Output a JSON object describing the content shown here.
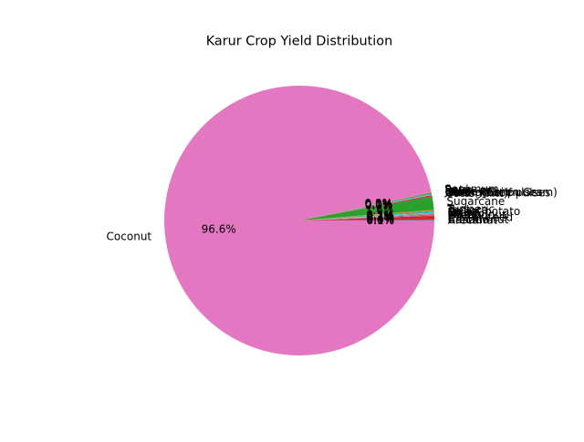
{
  "chart_data": {
    "type": "pie",
    "title": "Karur Crop Yield Distribution",
    "start_angle_deg": 0,
    "direction": "counterclockwise",
    "slices": [
      {
        "label": "Arecanut",
        "value": 0.08,
        "pct_text": "0.1%",
        "color": "#1f77b4"
      },
      {
        "label": "Banana",
        "value": 0.02,
        "pct_text": "0.0%",
        "color": "#ff7f0e"
      },
      {
        "label": "Cashewnut",
        "value": 0.02,
        "pct_text": "0.0%",
        "color": "#2ca02c"
      },
      {
        "label": "Castor seed",
        "value": 0.45,
        "pct_text": "0.4%",
        "color": "#d62728"
      },
      {
        "label": "Groundnut",
        "value": 0.08,
        "pct_text": "0.1%",
        "color": "#9467bd"
      },
      {
        "label": "Maize",
        "value": 0.06,
        "pct_text": "0.1%",
        "color": "#8c564b"
      },
      {
        "label": "Mango",
        "value": 0.07,
        "pct_text": "0.1%",
        "color": "#e377c2"
      },
      {
        "label": "Rice",
        "value": 0.08,
        "pct_text": "0.1%",
        "color": "#7f7f7f"
      },
      {
        "label": "Onion",
        "value": 0.06,
        "pct_text": "0.1%",
        "color": "#bcbd22"
      },
      {
        "label": "Sweet potato",
        "value": 0.16,
        "pct_text": "0.2%",
        "color": "#17becf"
      },
      {
        "label": "Tapioca",
        "value": 0.07,
        "pct_text": "0.1%",
        "color": "#1f77b4"
      },
      {
        "label": "Turmeric",
        "value": 0.11,
        "pct_text": "0.1%",
        "color": "#ff7f0e"
      },
      {
        "label": "Sugarcane",
        "value": 1.63,
        "pct_text": "1.6%",
        "color": "#2ca02c"
      },
      {
        "label": "Cotton(lint)",
        "value": 0.12,
        "pct_text": "0.1%",
        "color": "#d62728"
      },
      {
        "label": "Other Kharif pulses",
        "value": 0.02,
        "pct_text": "0.0%",
        "color": "#9467bd"
      },
      {
        "label": "Other Rabi pulses",
        "value": 0.02,
        "pct_text": "0.0%",
        "color": "#8c564b"
      },
      {
        "label": "Moong(Green Gram)",
        "value": 0.02,
        "pct_text": "0.0%",
        "color": "#e377c2"
      },
      {
        "label": "Urad",
        "value": 0.02,
        "pct_text": "0.0%",
        "color": "#7f7f7f"
      },
      {
        "label": "Horse-gram",
        "value": 0.02,
        "pct_text": "0.0%",
        "color": "#bcbd22"
      },
      {
        "label": "Jowar",
        "value": 0.1,
        "pct_text": "0.1%",
        "color": "#17becf"
      },
      {
        "label": "Bajra",
        "value": 0.09,
        "pct_text": "0.1%",
        "color": "#1f77b4"
      },
      {
        "label": "Ragi",
        "value": 0.08,
        "pct_text": "0.1%",
        "color": "#ff7f0e"
      },
      {
        "label": "Sesamum",
        "value": 0.02,
        "pct_text": "0.0%",
        "color": "#2ca02c"
      },
      {
        "label": "Coconut",
        "value": 96.6,
        "pct_text": "96.6%",
        "color": "#e377c2"
      }
    ]
  }
}
